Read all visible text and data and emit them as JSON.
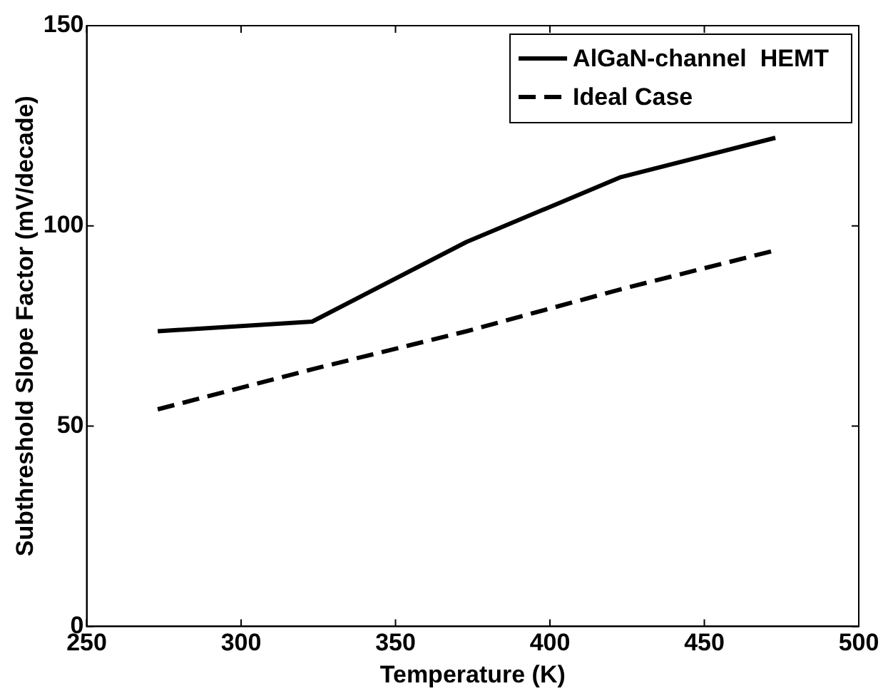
{
  "chart_data": {
    "type": "line",
    "xlabel": "Temperature (K)",
    "ylabel": "Subthreshold Slope Factor (mV/decade)",
    "x": [
      273,
      323,
      373,
      423,
      473
    ],
    "series": [
      {
        "name": "AlGaN-channel  HEMT",
        "color": "#000000",
        "values": [
          73.7,
          76.1,
          96,
          112.2,
          122
        ],
        "line_style": "solid"
      },
      {
        "name": "Ideal Case",
        "color": "#000000",
        "values": [
          54.2,
          64.2,
          73.7,
          84.2,
          93.9
        ],
        "line_style": "dashed"
      }
    ],
    "xlim": [
      250,
      500
    ],
    "xticks": [
      250,
      300,
      350,
      400,
      450,
      500
    ],
    "ylim": [
      0,
      150
    ],
    "yticks": [
      0,
      50,
      100,
      150
    ],
    "grid": false,
    "legend": "top right",
    "marker": "none"
  }
}
